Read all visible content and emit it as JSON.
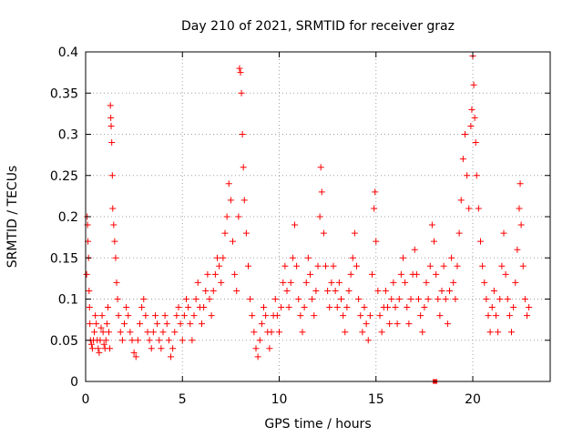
{
  "chart_data": {
    "type": "scatter",
    "title": "Day 210 of 2021, SRMTID for receiver graz",
    "xlabel": "GPS time / hours",
    "ylabel": "SRMTID / TECUs",
    "xlim": [
      0,
      24
    ],
    "ylim": [
      0,
      0.4
    ],
    "x_ticks": [
      0,
      5,
      10,
      15,
      20
    ],
    "y_ticks": [
      0,
      0.05,
      0.1,
      0.15,
      0.2,
      0.25,
      0.3,
      0.35,
      0.4
    ],
    "x_tick_labels": [
      "0",
      "5",
      "10",
      "15",
      "20"
    ],
    "y_tick_labels": [
      "0",
      "0.05",
      "0.1",
      "0.15",
      "0.2",
      "0.25",
      "0.3",
      "0.35",
      "0.4"
    ],
    "grid": true,
    "marker": "plus",
    "color": "#ff0000",
    "series": [
      {
        "name": "graz",
        "points": [
          [
            0.05,
            0.13
          ],
          [
            0.08,
            0.2
          ],
          [
            0.1,
            0.19
          ],
          [
            0.12,
            0.17
          ],
          [
            0.15,
            0.15
          ],
          [
            0.18,
            0.11
          ],
          [
            0.2,
            0.09
          ],
          [
            0.22,
            0.07
          ],
          [
            0.25,
            0.05
          ],
          [
            0.3,
            0.045
          ],
          [
            0.35,
            0.04
          ],
          [
            0.4,
            0.05
          ],
          [
            0.45,
            0.06
          ],
          [
            0.5,
            0.08
          ],
          [
            0.55,
            0.07
          ],
          [
            0.6,
            0.05
          ],
          [
            0.65,
            0.04
          ],
          [
            0.7,
            0.035
          ],
          [
            0.75,
            0.05
          ],
          [
            0.8,
            0.065
          ],
          [
            0.85,
            0.08
          ],
          [
            0.9,
            0.06
          ],
          [
            0.95,
            0.045
          ],
          [
            1.0,
            0.04
          ],
          [
            1.05,
            0.05
          ],
          [
            1.1,
            0.07
          ],
          [
            1.15,
            0.09
          ],
          [
            1.2,
            0.06
          ],
          [
            1.25,
            0.04
          ],
          [
            1.28,
            0.335
          ],
          [
            1.3,
            0.32
          ],
          [
            1.32,
            0.31
          ],
          [
            1.35,
            0.29
          ],
          [
            1.38,
            0.25
          ],
          [
            1.4,
            0.21
          ],
          [
            1.45,
            0.19
          ],
          [
            1.5,
            0.17
          ],
          [
            1.55,
            0.15
          ],
          [
            1.6,
            0.12
          ],
          [
            1.65,
            0.1
          ],
          [
            1.7,
            0.08
          ],
          [
            1.8,
            0.06
          ],
          [
            1.9,
            0.05
          ],
          [
            2.0,
            0.07
          ],
          [
            2.1,
            0.09
          ],
          [
            2.2,
            0.08
          ],
          [
            2.3,
            0.06
          ],
          [
            2.4,
            0.05
          ],
          [
            2.5,
            0.035
          ],
          [
            2.6,
            0.03
          ],
          [
            2.7,
            0.05
          ],
          [
            2.8,
            0.07
          ],
          [
            2.9,
            0.09
          ],
          [
            3.0,
            0.1
          ],
          [
            3.1,
            0.08
          ],
          [
            3.2,
            0.06
          ],
          [
            3.3,
            0.05
          ],
          [
            3.4,
            0.04
          ],
          [
            3.5,
            0.06
          ],
          [
            3.6,
            0.08
          ],
          [
            3.7,
            0.07
          ],
          [
            3.8,
            0.05
          ],
          [
            3.9,
            0.04
          ],
          [
            4.0,
            0.06
          ],
          [
            4.1,
            0.08
          ],
          [
            4.2,
            0.07
          ],
          [
            4.3,
            0.05
          ],
          [
            4.4,
            0.03
          ],
          [
            4.5,
            0.04
          ],
          [
            4.6,
            0.06
          ],
          [
            4.7,
            0.08
          ],
          [
            4.8,
            0.09
          ],
          [
            4.9,
            0.07
          ],
          [
            5.0,
            0.05
          ],
          [
            5.1,
            0.08
          ],
          [
            5.2,
            0.1
          ],
          [
            5.3,
            0.09
          ],
          [
            5.4,
            0.07
          ],
          [
            5.5,
            0.05
          ],
          [
            5.6,
            0.08
          ],
          [
            5.7,
            0.1
          ],
          [
            5.8,
            0.12
          ],
          [
            5.9,
            0.09
          ],
          [
            6.0,
            0.07
          ],
          [
            6.1,
            0.09
          ],
          [
            6.2,
            0.11
          ],
          [
            6.3,
            0.13
          ],
          [
            6.4,
            0.1
          ],
          [
            6.5,
            0.08
          ],
          [
            6.6,
            0.11
          ],
          [
            6.7,
            0.13
          ],
          [
            6.8,
            0.15
          ],
          [
            6.9,
            0.14
          ],
          [
            7.0,
            0.12
          ],
          [
            7.1,
            0.15
          ],
          [
            7.2,
            0.18
          ],
          [
            7.3,
            0.2
          ],
          [
            7.4,
            0.24
          ],
          [
            7.5,
            0.22
          ],
          [
            7.6,
            0.17
          ],
          [
            7.7,
            0.13
          ],
          [
            7.8,
            0.11
          ],
          [
            7.9,
            0.2
          ],
          [
            7.95,
            0.38
          ],
          [
            8.0,
            0.375
          ],
          [
            8.05,
            0.35
          ],
          [
            8.1,
            0.3
          ],
          [
            8.15,
            0.26
          ],
          [
            8.2,
            0.22
          ],
          [
            8.3,
            0.18
          ],
          [
            8.4,
            0.14
          ],
          [
            8.5,
            0.1
          ],
          [
            8.6,
            0.08
          ],
          [
            8.7,
            0.06
          ],
          [
            8.8,
            0.04
          ],
          [
            8.9,
            0.03
          ],
          [
            9.0,
            0.05
          ],
          [
            9.1,
            0.07
          ],
          [
            9.2,
            0.09
          ],
          [
            9.3,
            0.08
          ],
          [
            9.4,
            0.06
          ],
          [
            9.5,
            0.04
          ],
          [
            9.6,
            0.06
          ],
          [
            9.7,
            0.08
          ],
          [
            9.8,
            0.1
          ],
          [
            9.9,
            0.08
          ],
          [
            10.0,
            0.06
          ],
          [
            10.1,
            0.09
          ],
          [
            10.2,
            0.12
          ],
          [
            10.3,
            0.14
          ],
          [
            10.4,
            0.11
          ],
          [
            10.5,
            0.09
          ],
          [
            10.6,
            0.12
          ],
          [
            10.7,
            0.15
          ],
          [
            10.8,
            0.19
          ],
          [
            10.9,
            0.14
          ],
          [
            11.0,
            0.1
          ],
          [
            11.1,
            0.08
          ],
          [
            11.2,
            0.06
          ],
          [
            11.3,
            0.09
          ],
          [
            11.4,
            0.12
          ],
          [
            11.5,
            0.15
          ],
          [
            11.6,
            0.13
          ],
          [
            11.7,
            0.1
          ],
          [
            11.8,
            0.08
          ],
          [
            11.9,
            0.11
          ],
          [
            12.0,
            0.14
          ],
          [
            12.1,
            0.2
          ],
          [
            12.15,
            0.26
          ],
          [
            12.2,
            0.23
          ],
          [
            12.3,
            0.18
          ],
          [
            12.4,
            0.14
          ],
          [
            12.5,
            0.11
          ],
          [
            12.6,
            0.09
          ],
          [
            12.7,
            0.12
          ],
          [
            12.8,
            0.14
          ],
          [
            12.9,
            0.11
          ],
          [
            13.0,
            0.09
          ],
          [
            13.1,
            0.12
          ],
          [
            13.2,
            0.1
          ],
          [
            13.3,
            0.08
          ],
          [
            13.4,
            0.06
          ],
          [
            13.5,
            0.09
          ],
          [
            13.6,
            0.11
          ],
          [
            13.7,
            0.13
          ],
          [
            13.8,
            0.15
          ],
          [
            13.9,
            0.18
          ],
          [
            14.0,
            0.14
          ],
          [
            14.1,
            0.1
          ],
          [
            14.2,
            0.08
          ],
          [
            14.3,
            0.06
          ],
          [
            14.4,
            0.09
          ],
          [
            14.5,
            0.07
          ],
          [
            14.6,
            0.05
          ],
          [
            14.7,
            0.08
          ],
          [
            14.8,
            0.13
          ],
          [
            14.9,
            0.21
          ],
          [
            14.95,
            0.23
          ],
          [
            15.0,
            0.17
          ],
          [
            15.1,
            0.11
          ],
          [
            15.2,
            0.08
          ],
          [
            15.3,
            0.06
          ],
          [
            15.4,
            0.09
          ],
          [
            15.5,
            0.11
          ],
          [
            15.6,
            0.09
          ],
          [
            15.7,
            0.07
          ],
          [
            15.8,
            0.1
          ],
          [
            15.9,
            0.12
          ],
          [
            16.0,
            0.09
          ],
          [
            16.1,
            0.07
          ],
          [
            16.2,
            0.1
          ],
          [
            16.3,
            0.13
          ],
          [
            16.4,
            0.15
          ],
          [
            16.5,
            0.12
          ],
          [
            16.6,
            0.09
          ],
          [
            16.7,
            0.07
          ],
          [
            16.8,
            0.1
          ],
          [
            16.9,
            0.13
          ],
          [
            17.0,
            0.16
          ],
          [
            17.1,
            0.13
          ],
          [
            17.2,
            0.1
          ],
          [
            17.3,
            0.08
          ],
          [
            17.4,
            0.06
          ],
          [
            17.5,
            0.09
          ],
          [
            17.6,
            0.12
          ],
          [
            17.7,
            0.1
          ],
          [
            17.8,
            0.14
          ],
          [
            17.9,
            0.19
          ],
          [
            18.0,
            0.17
          ],
          [
            18.1,
            0.13
          ],
          [
            18.2,
            0.1
          ],
          [
            18.3,
            0.08
          ],
          [
            18.4,
            0.11
          ],
          [
            18.5,
            0.14
          ],
          [
            18.6,
            0.1
          ],
          [
            18.7,
            0.07
          ],
          [
            18.8,
            0.11
          ],
          [
            18.9,
            0.15
          ],
          [
            19.0,
            0.12
          ],
          [
            19.1,
            0.1
          ],
          [
            19.2,
            0.14
          ],
          [
            19.3,
            0.18
          ],
          [
            19.4,
            0.22
          ],
          [
            19.5,
            0.27
          ],
          [
            19.6,
            0.3
          ],
          [
            19.7,
            0.25
          ],
          [
            19.8,
            0.21
          ],
          [
            19.9,
            0.31
          ],
          [
            19.95,
            0.33
          ],
          [
            20.0,
            0.395
          ],
          [
            20.05,
            0.36
          ],
          [
            20.1,
            0.32
          ],
          [
            20.15,
            0.29
          ],
          [
            20.2,
            0.25
          ],
          [
            20.3,
            0.21
          ],
          [
            20.4,
            0.17
          ],
          [
            20.5,
            0.14
          ],
          [
            20.6,
            0.12
          ],
          [
            20.7,
            0.1
          ],
          [
            20.8,
            0.08
          ],
          [
            20.9,
            0.06
          ],
          [
            21.0,
            0.09
          ],
          [
            21.1,
            0.11
          ],
          [
            21.2,
            0.08
          ],
          [
            21.3,
            0.06
          ],
          [
            21.4,
            0.1
          ],
          [
            21.5,
            0.14
          ],
          [
            21.6,
            0.18
          ],
          [
            21.7,
            0.13
          ],
          [
            21.8,
            0.1
          ],
          [
            21.9,
            0.08
          ],
          [
            22.0,
            0.06
          ],
          [
            22.1,
            0.09
          ],
          [
            22.2,
            0.12
          ],
          [
            22.3,
            0.16
          ],
          [
            22.4,
            0.21
          ],
          [
            22.45,
            0.24
          ],
          [
            22.5,
            0.19
          ],
          [
            22.6,
            0.14
          ],
          [
            22.7,
            0.1
          ],
          [
            22.8,
            0.08
          ],
          [
            22.9,
            0.09
          ]
        ]
      }
    ],
    "outliers": [
      [
        18.05,
        0.0
      ]
    ]
  }
}
